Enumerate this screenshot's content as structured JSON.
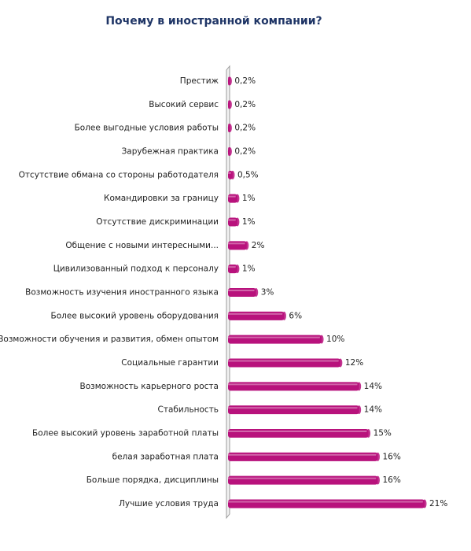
{
  "chart_data": {
    "type": "hbar",
    "title": "Почему в иностранной компании?",
    "categories": [
      "Престиж",
      "Высокий сервис",
      "Более выгодные условия работы",
      "Зарубежная практика",
      "Отсутствие обмана со стороны работодателя",
      "Командировки за границу",
      "Отсутствие дискриминации",
      "Общение с новыми интересными...",
      "Цивилизованный подход к персоналу",
      "Возможность изучения иностранного языка",
      "Более высокий уровень оборудования",
      "Возможности обучения и развития, обмен опытом",
      "Социальные гарантии",
      "Возможность карьерного роста",
      "Стабильность",
      "Более высокий уровень заработной платы",
      "белая заработная плата",
      "Больше порядка, дисциплины",
      "Лучшие условия труда"
    ],
    "values": [
      0.2,
      0.2,
      0.2,
      0.2,
      0.5,
      1,
      1,
      2,
      1,
      3,
      6,
      10,
      12,
      14,
      14,
      15,
      16,
      16,
      21
    ],
    "value_labels": [
      "0,2%",
      "0,2%",
      "0,2%",
      "0,2%",
      "0,5%",
      "1%",
      "1%",
      "2%",
      "1%",
      "3%",
      "6%",
      "10%",
      "12%",
      "14%",
      "14%",
      "15%",
      "16%",
      "16%",
      "21%"
    ],
    "color": "#b8127c"
  }
}
